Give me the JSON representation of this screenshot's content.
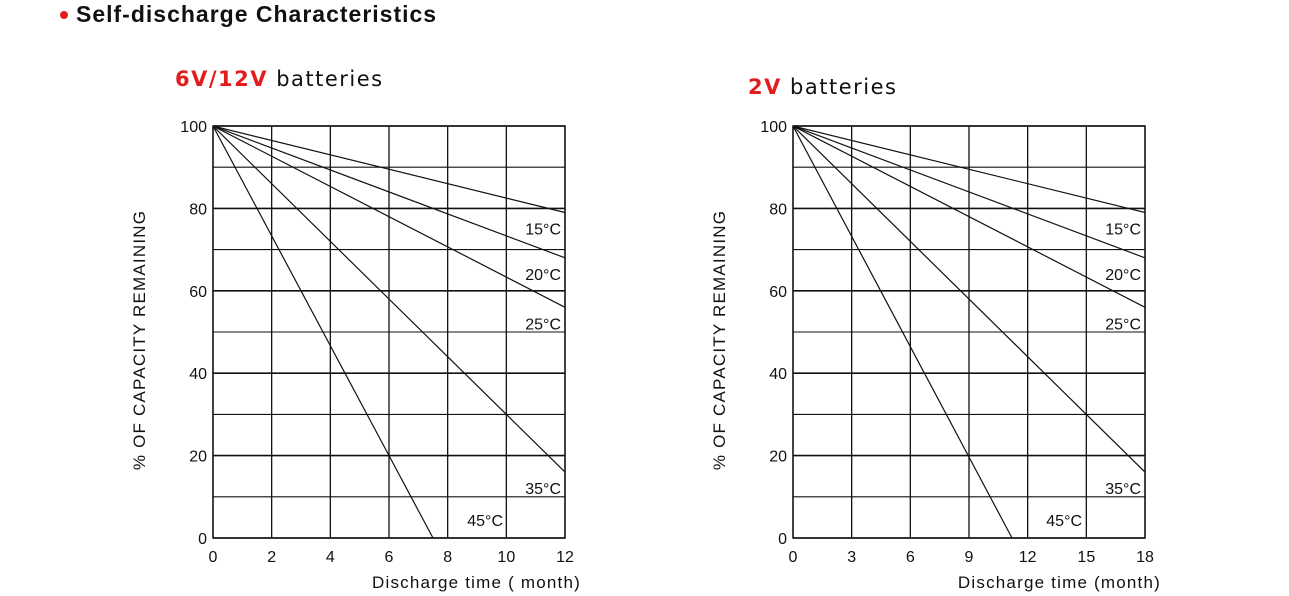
{
  "header": {
    "title": "Self-discharge Characteristics",
    "bullet_color": "#e31d1d"
  },
  "chart_data": [
    {
      "type": "line",
      "title_highlight": "6V/12V",
      "title_rest": " batteries",
      "xlabel": "Discharge time ( month)",
      "ylabel": "% OF CAPACITY REMAINING",
      "xlim": [
        0,
        12
      ],
      "ylim": [
        0,
        100
      ],
      "xticks": [
        0,
        2,
        4,
        6,
        8,
        10,
        12
      ],
      "yticks": [
        0,
        20,
        40,
        60,
        80,
        100
      ],
      "grid": true,
      "series": [
        {
          "name": "15°C",
          "x": [
            0,
            12
          ],
          "y": [
            100,
            79
          ]
        },
        {
          "name": "20°C",
          "x": [
            0,
            12
          ],
          "y": [
            100,
            68
          ]
        },
        {
          "name": "25°C",
          "x": [
            0,
            12
          ],
          "y": [
            100,
            56
          ]
        },
        {
          "name": "35°C",
          "x": [
            0,
            12
          ],
          "y": [
            100,
            16
          ]
        },
        {
          "name": "45°C",
          "x": [
            0,
            7.5
          ],
          "y": [
            100,
            0
          ]
        }
      ]
    },
    {
      "type": "line",
      "title_highlight": "2V",
      "title_rest": " batteries",
      "xlabel": "Discharge time (month)",
      "ylabel": "% OF CAPACITY REMAINING",
      "xlim": [
        0,
        18
      ],
      "ylim": [
        0,
        100
      ],
      "xticks": [
        0,
        3,
        6,
        9,
        12,
        15,
        18
      ],
      "yticks": [
        0,
        20,
        40,
        60,
        80,
        100
      ],
      "grid": true,
      "series": [
        {
          "name": "15°C",
          "x": [
            0,
            18
          ],
          "y": [
            100,
            79
          ]
        },
        {
          "name": "20°C",
          "x": [
            0,
            18
          ],
          "y": [
            100,
            68
          ]
        },
        {
          "name": "25°C",
          "x": [
            0,
            18
          ],
          "y": [
            100,
            56
          ]
        },
        {
          "name": "35°C",
          "x": [
            0,
            18
          ],
          "y": [
            100,
            16
          ]
        },
        {
          "name": "45°C",
          "x": [
            0,
            11.2
          ],
          "y": [
            100,
            0
          ]
        }
      ]
    }
  ]
}
